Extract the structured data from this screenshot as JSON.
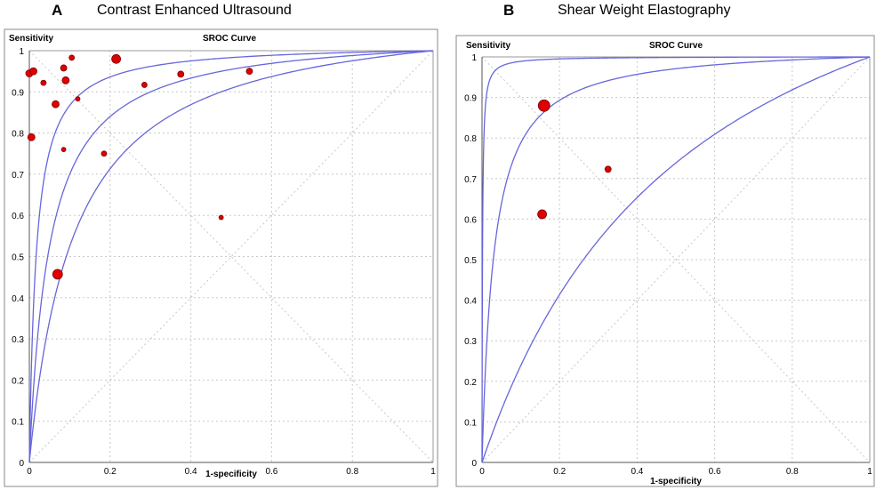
{
  "colors": {
    "curve": "#6666dd",
    "point": "#e00000",
    "point_stroke": "#7a0000",
    "grid": "#c8c8c8",
    "frame": "#888888"
  },
  "chart_data": [
    {
      "type": "scatter",
      "panel_letter": "A",
      "title": "Contrast Enhanced Ultrasound",
      "plot_title": "SROC Curve",
      "xlabel": "1-specificity",
      "ylabel": "Sensitivity",
      "xlim": [
        0,
        1
      ],
      "ylim": [
        0,
        1
      ],
      "xticks": [
        "0",
        "0.2",
        "0.4",
        "0.6",
        "0.8",
        "1"
      ],
      "yticks": [
        "0",
        "0.1",
        "0.2",
        "0.3",
        "0.4",
        "0.5",
        "0.6",
        "0.7",
        "0.8",
        "0.9",
        "1"
      ],
      "points": [
        {
          "x": 0.0,
          "y": 0.945,
          "size": 4
        },
        {
          "x": 0.01,
          "y": 0.95,
          "size": 4
        },
        {
          "x": 0.035,
          "y": 0.922,
          "size": 3
        },
        {
          "x": 0.085,
          "y": 0.958,
          "size": 3.5
        },
        {
          "x": 0.105,
          "y": 0.983,
          "size": 3
        },
        {
          "x": 0.09,
          "y": 0.928,
          "size": 4
        },
        {
          "x": 0.215,
          "y": 0.98,
          "size": 5
        },
        {
          "x": 0.065,
          "y": 0.87,
          "size": 4
        },
        {
          "x": 0.12,
          "y": 0.883,
          "size": 2.5
        },
        {
          "x": 0.005,
          "y": 0.79,
          "size": 4
        },
        {
          "x": 0.085,
          "y": 0.76,
          "size": 2.5
        },
        {
          "x": 0.185,
          "y": 0.75,
          "size": 3
        },
        {
          "x": 0.285,
          "y": 0.917,
          "size": 3
        },
        {
          "x": 0.375,
          "y": 0.943,
          "size": 3.5
        },
        {
          "x": 0.545,
          "y": 0.95,
          "size": 3.5
        },
        {
          "x": 0.475,
          "y": 0.595,
          "size": 2.5
        },
        {
          "x": 0.07,
          "y": 0.457,
          "size": 5.5
        }
      ],
      "curves": [
        {
          "name": "SROC",
          "k": 0.0025
        },
        {
          "name": "CI upper",
          "k": 0.0003
        },
        {
          "name": "CI lower",
          "k": 0.0125
        }
      ]
    },
    {
      "type": "scatter",
      "panel_letter": "B",
      "title": "Shear Weight Elastography",
      "plot_title": "SROC Curve",
      "xlabel": "1-specificity",
      "ylabel": "Sensitivity",
      "xlim": [
        0,
        1
      ],
      "ylim": [
        0,
        1
      ],
      "xticks": [
        "0",
        "0.2",
        "0.4",
        "0.6",
        "0.8",
        "1"
      ],
      "yticks": [
        "0",
        "0.1",
        "0.2",
        "0.3",
        "0.4",
        "0.5",
        "0.6",
        "0.7",
        "0.8",
        "0.9",
        "1"
      ],
      "points": [
        {
          "x": 0.16,
          "y": 0.88,
          "size": 6.5
        },
        {
          "x": 0.155,
          "y": 0.612,
          "size": 5
        },
        {
          "x": 0.325,
          "y": 0.723,
          "size": 3.5
        }
      ],
      "curves": [
        {
          "name": "SROC",
          "k": 0.00095
        },
        {
          "name": "CI upper",
          "k": 1.5e-06
        },
        {
          "name": "CI lower",
          "k": 0.3
        }
      ]
    }
  ]
}
